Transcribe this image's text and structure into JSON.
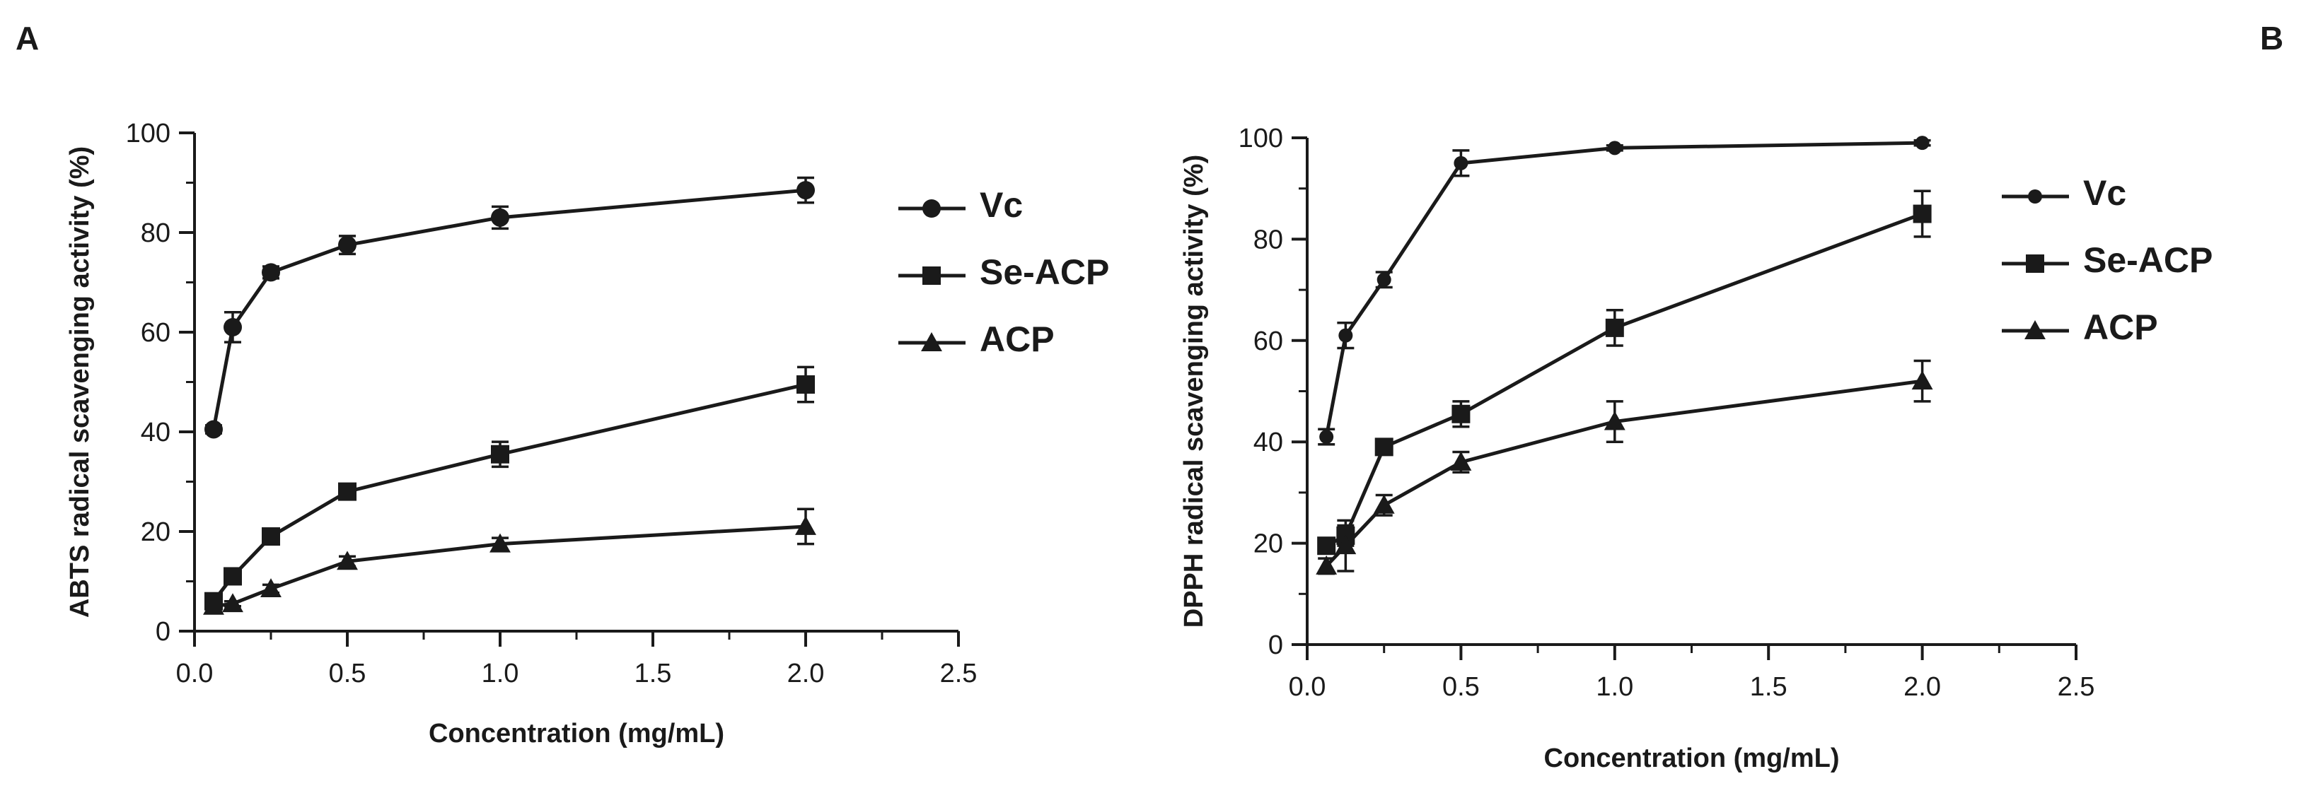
{
  "chart_data": [
    {
      "type": "line",
      "panel_label": "A",
      "xlabel": "Concentration (mg/mL)",
      "ylabel": "ABTS radical scavenging activity (%)",
      "xlim": [
        0,
        2.5
      ],
      "ylim": [
        0,
        100
      ],
      "xticks": [
        "0.0",
        "0.5",
        "1.0",
        "1.5",
        "2.0",
        "2.5"
      ],
      "yticks": [
        "0",
        "20",
        "40",
        "60",
        "80",
        "100"
      ],
      "xtick_values": [
        0,
        0.5,
        1.0,
        1.5,
        2.0,
        2.5
      ],
      "ytick_values": [
        0,
        20,
        40,
        60,
        80,
        100
      ],
      "legend_position": "right",
      "x": [
        0.0625,
        0.125,
        0.25,
        0.5,
        1.0,
        2.0
      ],
      "series": [
        {
          "name": "Vc",
          "marker": "circle",
          "values": [
            40.5,
            61,
            72,
            77.5,
            83,
            88.5
          ],
          "errors": [
            0.8,
            3,
            1.2,
            1.8,
            2.2,
            2.5
          ]
        },
        {
          "name": "Se-ACP",
          "marker": "square",
          "values": [
            6,
            11,
            19,
            28,
            35.5,
            49.5
          ],
          "errors": [
            0.8,
            1,
            1.2,
            1.2,
            2.5,
            3.5
          ]
        },
        {
          "name": "ACP",
          "marker": "triangle",
          "values": [
            5,
            5.5,
            8.5,
            14,
            17.5,
            21
          ],
          "errors": [
            0.5,
            0.5,
            0.8,
            1,
            1.2,
            3.5
          ]
        }
      ]
    },
    {
      "type": "line",
      "panel_label": "B",
      "xlabel": "Concentration (mg/mL)",
      "ylabel": "DPPH radical scavenging activity (%)",
      "xlim": [
        0,
        2.5
      ],
      "ylim": [
        0,
        100
      ],
      "xticks": [
        "0.0",
        "0.5",
        "1.0",
        "1.5",
        "2.0",
        "2.5"
      ],
      "yticks": [
        "0",
        "20",
        "40",
        "60",
        "80",
        "100"
      ],
      "xtick_values": [
        0,
        0.5,
        1.0,
        1.5,
        2.0,
        2.5
      ],
      "ytick_values": [
        0,
        20,
        40,
        60,
        80,
        100
      ],
      "legend_position": "right",
      "x": [
        0.0625,
        0.125,
        0.25,
        0.5,
        1.0,
        2.0
      ],
      "series": [
        {
          "name": "Vc",
          "marker": "circle",
          "values": [
            41,
            61,
            72,
            95,
            98,
            99
          ],
          "errors": [
            1.5,
            2.5,
            1.5,
            2.5,
            0.5,
            0.5
          ]
        },
        {
          "name": "Se-ACP",
          "marker": "square",
          "values": [
            19.5,
            21.5,
            39,
            45.5,
            62.5,
            85
          ],
          "errors": [
            1,
            2,
            1.2,
            2.5,
            3.5,
            4.5
          ]
        },
        {
          "name": "ACP",
          "marker": "triangle",
          "values": [
            15.5,
            19.5,
            27.5,
            36,
            44,
            52
          ],
          "errors": [
            1.5,
            5,
            2,
            2,
            4,
            4
          ]
        }
      ]
    }
  ]
}
